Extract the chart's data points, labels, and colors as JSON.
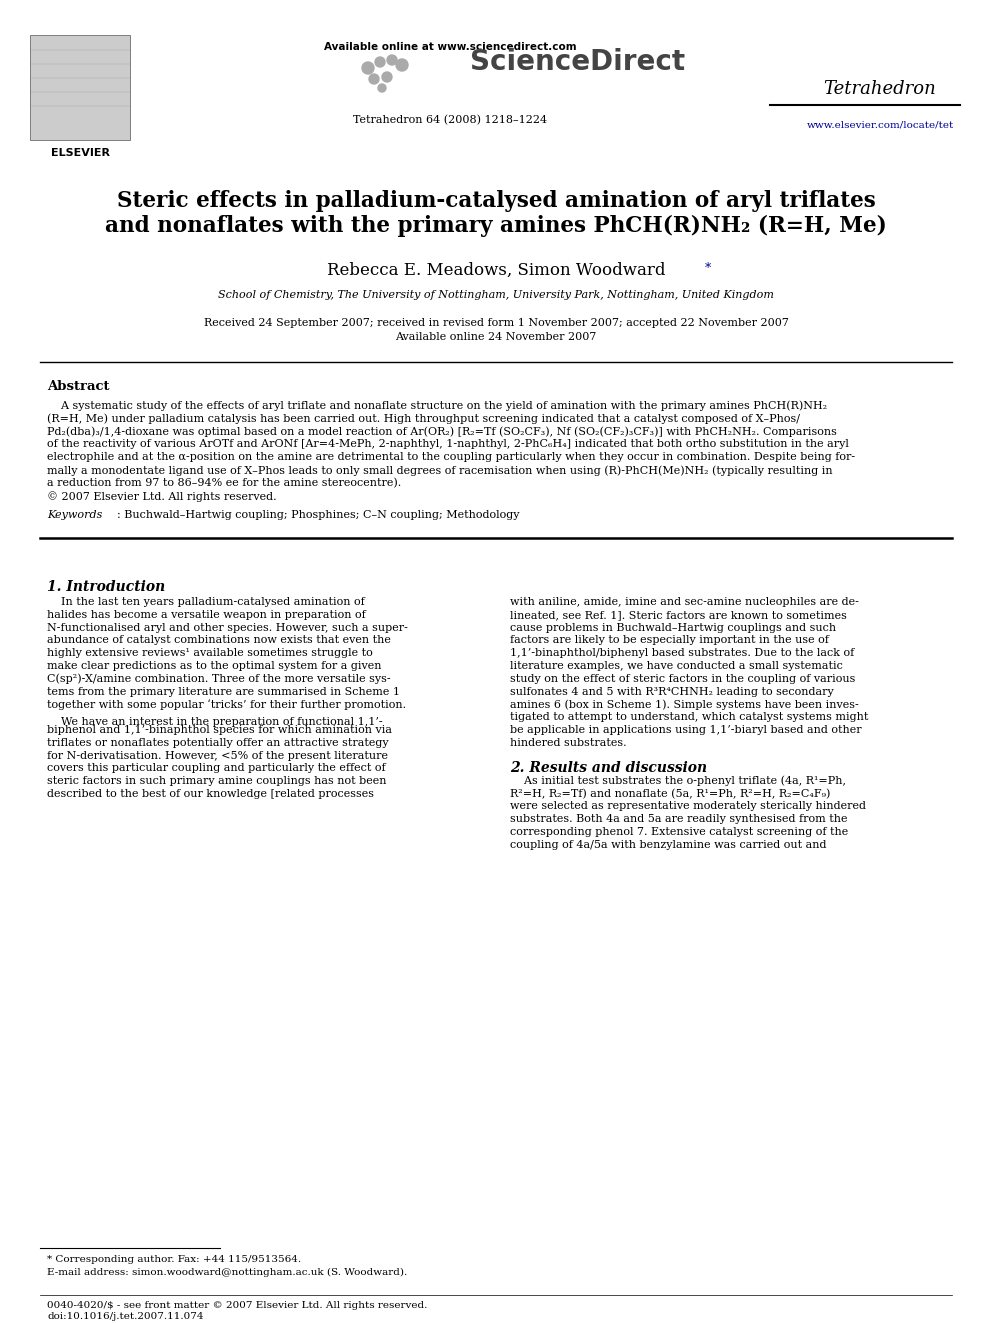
{
  "title_line1": "Steric effects in palladium-catalysed amination of aryl triflates",
  "title_line2": "and nonaflates with the primary amines PhCH(R)NH₂ (R=H, Me)",
  "authors": "Rebecca E. Meadows, Simon Woodward",
  "author_star": "*",
  "affiliation": "School of Chemistry, The University of Nottingham, University Park, Nottingham, United Kingdom",
  "received": "Received 24 September 2007; received in revised form 1 November 2007; accepted 22 November 2007",
  "available": "Available online 24 November 2007",
  "journal_name": "Tetrahedron",
  "journal_info": "Tetrahedron 64 (2008) 1218–1224",
  "available_online": "Available online at www.sciencedirect.com",
  "sciencedirect": "ScienceDirect",
  "url": "www.elsevier.com/locate/tet",
  "elsevier": "ELSEVIER",
  "abstract_title": "Abstract",
  "keywords_label": "Keywords",
  "keywords_text": ": Buchwald–Hartwig coupling; Phosphines; C–N coupling; Methodology",
  "section1_title": "1. Introduction",
  "section2_title": "2. Results and discussion",
  "footnote_star": "* Corresponding author. Fax: +44 115/9513564.",
  "footnote_email": "E-mail address: simon.woodward@nottingham.ac.uk (S. Woodward).",
  "footer_line1": "0040-4020/$ - see front matter © 2007 Elsevier Ltd. All rights reserved.",
  "footer_line2": "doi:10.1016/j.tet.2007.11.074",
  "bg_color": "#ffffff",
  "text_color": "#000000",
  "link_color": "#000099"
}
